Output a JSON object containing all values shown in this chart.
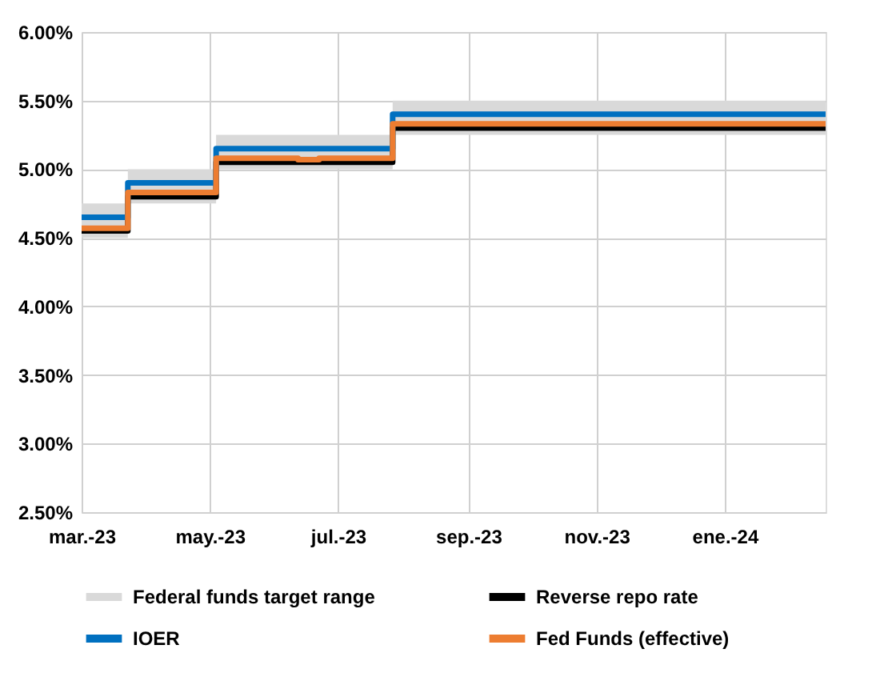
{
  "chart_data": {
    "type": "step",
    "x": [
      "2023-03-01",
      "2023-03-23",
      "2023-05-04",
      "2023-07-27",
      "2024-02-18"
    ],
    "series": [
      {
        "name": "Federal funds target range",
        "color": "#d9d9d9",
        "lower": [
          4.5,
          4.75,
          5.0,
          5.25,
          5.25
        ],
        "upper": [
          4.75,
          5.0,
          5.25,
          5.5,
          5.5
        ],
        "values": [
          null,
          null,
          null,
          null,
          null
        ]
      },
      {
        "name": "Reverse repo rate",
        "color": "#000000",
        "values": [
          4.55,
          4.8,
          5.05,
          5.3,
          5.3
        ]
      },
      {
        "name": "IOER",
        "color": "#0070c0",
        "values": [
          4.65,
          4.9,
          5.15,
          5.4,
          5.4
        ]
      },
      {
        "name": "Fed Funds (effective)",
        "color": "#ed7d31",
        "x": [
          "2023-03-01",
          "2023-03-23",
          "2023-05-04",
          "2023-06-12",
          "2023-06-22",
          "2023-07-27",
          "2024-02-18"
        ],
        "values": [
          4.57,
          4.83,
          5.08,
          5.07,
          5.08,
          5.33,
          5.33
        ]
      }
    ],
    "xlim": [
      "2023-03-01",
      "2024-02-18"
    ],
    "xticks": [
      {
        "value": "2023-03-01",
        "label": "mar.-23"
      },
      {
        "value": "2023-05-01",
        "label": "may.-23"
      },
      {
        "value": "2023-07-01",
        "label": "jul.-23"
      },
      {
        "value": "2023-09-01",
        "label": "sep.-23"
      },
      {
        "value": "2023-11-01",
        "label": "nov.-23"
      },
      {
        "value": "2024-01-01",
        "label": "ene.-24"
      }
    ],
    "ylim": [
      2.5,
      6.0
    ],
    "yticks": [
      {
        "value": 2.5,
        "label": "2.50%"
      },
      {
        "value": 3.0,
        "label": "3.00%"
      },
      {
        "value": 3.5,
        "label": "3.50%"
      },
      {
        "value": 4.0,
        "label": "4.00%"
      },
      {
        "value": 4.5,
        "label": "4.50%"
      },
      {
        "value": 5.0,
        "label": "5.00%"
      },
      {
        "value": 5.5,
        "label": "5.50%"
      },
      {
        "value": 6.0,
        "label": "6.00%"
      }
    ],
    "grid": true,
    "legend": "bottom",
    "line_style": "solid",
    "marker": "none"
  }
}
